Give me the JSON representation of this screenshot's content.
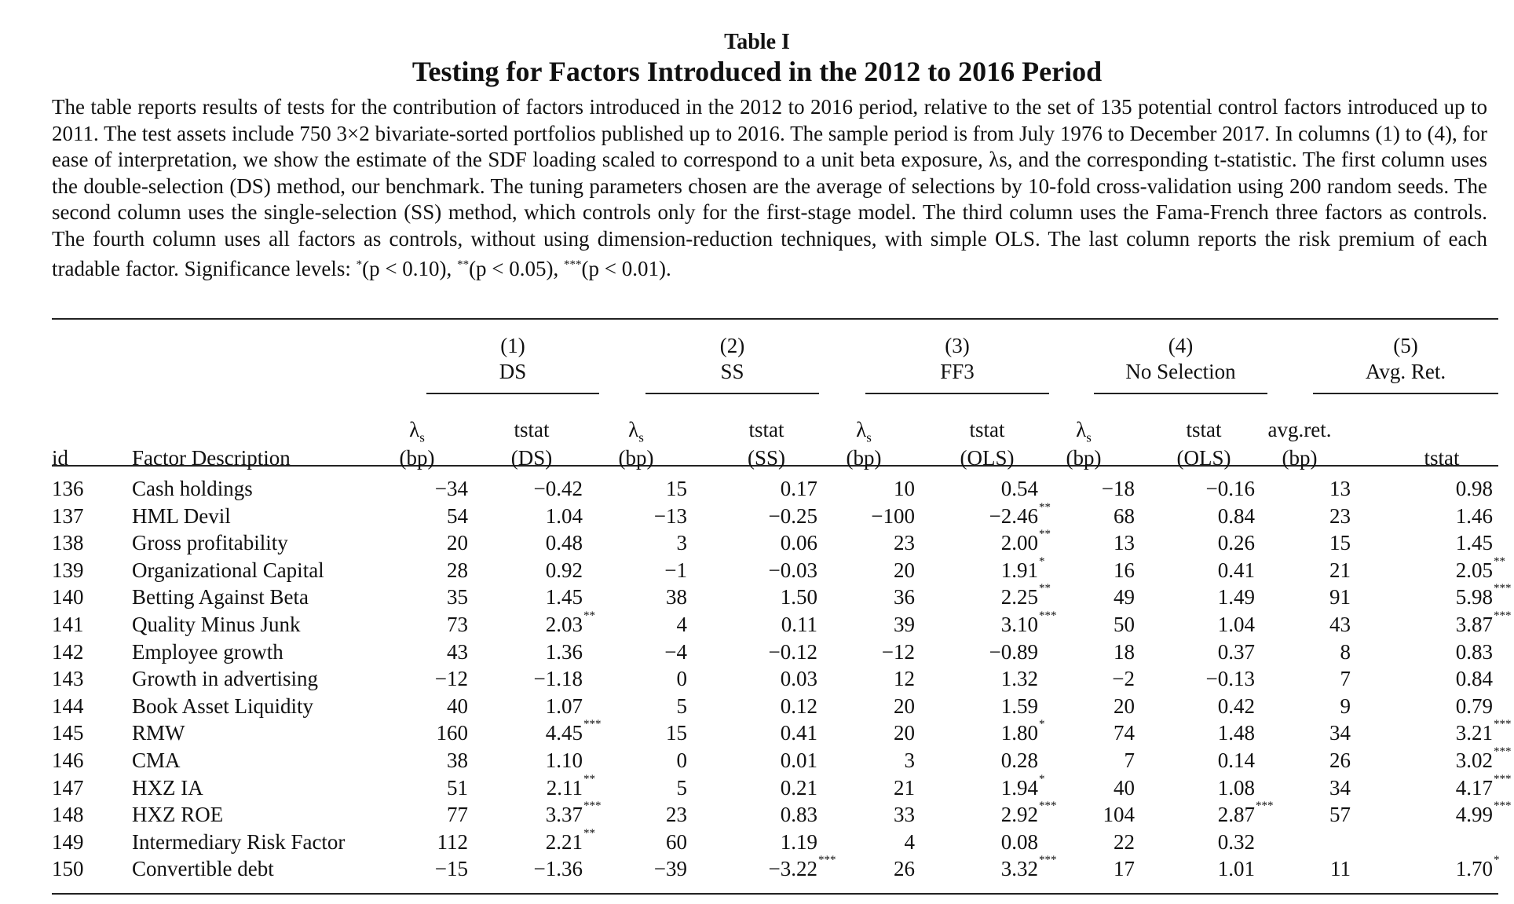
{
  "table_label": "Table I",
  "title": "Testing for Factors Introduced in the 2012 to 2016 Period",
  "caption": {
    "main": "The table reports results of tests for the contribution of factors introduced in the 2012 to 2016 period, relative to the set of 135 potential control factors introduced up to 2011. The test assets include 750 3×2 bivariate-sorted portfolios published up to 2016. The sample period is from July 1976 to December 2017. In columns (1) to (4), for ease of interpretation, we show the estimate of the SDF loading scaled to correspond to a unit beta exposure, λs, and the corresponding t-statistic. The first column uses the double-selection (DS) method, our benchmark. The tuning parameters chosen are the average of selections by 10-fold cross-validation using 200 random seeds. The second column uses the single-selection (SS) method, which controls only for the first-stage model. The third column uses the Fama-French three factors as controls. The fourth column uses all factors as controls, without using dimension-reduction techniques, with simple OLS. The last column reports the risk premium of each tradable factor. Significance levels: ",
    "sig1_mark": "*",
    "sig1_text": "(p < 0.10), ",
    "sig2_mark": "**",
    "sig2_text": "(p < 0.05), ",
    "sig3_mark": "***",
    "sig3_text": "(p < 0.01)."
  },
  "groups": [
    {
      "num": "(1)",
      "name": "DS"
    },
    {
      "num": "(2)",
      "name": "SS"
    },
    {
      "num": "(3)",
      "name": "FF3"
    },
    {
      "num": "(4)",
      "name": "No Selection"
    },
    {
      "num": "(5)",
      "name": "Avg. Ret."
    }
  ],
  "headers": {
    "id": "id",
    "desc": "Factor Description",
    "sub": [
      [
        "λs",
        "(bp)"
      ],
      [
        "tstat",
        "(DS)"
      ],
      [
        "λs",
        "(bp)"
      ],
      [
        "tstat",
        "(SS)"
      ],
      [
        "λs",
        "(bp)"
      ],
      [
        "tstat",
        "(OLS)"
      ],
      [
        "λs",
        "(bp)"
      ],
      [
        "tstat",
        "(OLS)"
      ],
      [
        "avg.ret.",
        "(bp)"
      ],
      [
        "",
        "tstat"
      ]
    ]
  },
  "rows": [
    {
      "id": "136",
      "desc": "Cash holdings",
      "cells": [
        [
          "−34",
          ""
        ],
        [
          "−0.42",
          ""
        ],
        [
          "15",
          ""
        ],
        [
          "0.17",
          ""
        ],
        [
          "10",
          ""
        ],
        [
          "0.54",
          ""
        ],
        [
          "−18",
          ""
        ],
        [
          "−0.16",
          ""
        ],
        [
          "13",
          ""
        ],
        [
          "0.98",
          ""
        ]
      ]
    },
    {
      "id": "137",
      "desc": "HML Devil",
      "cells": [
        [
          "54",
          ""
        ],
        [
          "1.04",
          ""
        ],
        [
          "−13",
          ""
        ],
        [
          "−0.25",
          ""
        ],
        [
          "−100",
          ""
        ],
        [
          "−2.46",
          "**"
        ],
        [
          "68",
          ""
        ],
        [
          "0.84",
          ""
        ],
        [
          "23",
          ""
        ],
        [
          "1.46",
          ""
        ]
      ]
    },
    {
      "id": "138",
      "desc": "Gross profitability",
      "cells": [
        [
          "20",
          ""
        ],
        [
          "0.48",
          ""
        ],
        [
          "3",
          ""
        ],
        [
          "0.06",
          ""
        ],
        [
          "23",
          ""
        ],
        [
          "2.00",
          "**"
        ],
        [
          "13",
          ""
        ],
        [
          "0.26",
          ""
        ],
        [
          "15",
          ""
        ],
        [
          "1.45",
          ""
        ]
      ]
    },
    {
      "id": "139",
      "desc": "Organizational Capital",
      "cells": [
        [
          "28",
          ""
        ],
        [
          "0.92",
          ""
        ],
        [
          "−1",
          ""
        ],
        [
          "−0.03",
          ""
        ],
        [
          "20",
          ""
        ],
        [
          "1.91",
          "*"
        ],
        [
          "16",
          ""
        ],
        [
          "0.41",
          ""
        ],
        [
          "21",
          ""
        ],
        [
          "2.05",
          "**"
        ]
      ]
    },
    {
      "id": "140",
      "desc": "Betting Against Beta",
      "cells": [
        [
          "35",
          ""
        ],
        [
          "1.45",
          ""
        ],
        [
          "38",
          ""
        ],
        [
          "1.50",
          ""
        ],
        [
          "36",
          ""
        ],
        [
          "2.25",
          "**"
        ],
        [
          "49",
          ""
        ],
        [
          "1.49",
          ""
        ],
        [
          "91",
          ""
        ],
        [
          "5.98",
          "***"
        ]
      ]
    },
    {
      "id": "141",
      "desc": "Quality Minus Junk",
      "cells": [
        [
          "73",
          ""
        ],
        [
          "2.03",
          "**"
        ],
        [
          "4",
          ""
        ],
        [
          "0.11",
          ""
        ],
        [
          "39",
          ""
        ],
        [
          "3.10",
          "***"
        ],
        [
          "50",
          ""
        ],
        [
          "1.04",
          ""
        ],
        [
          "43",
          ""
        ],
        [
          "3.87",
          "***"
        ]
      ]
    },
    {
      "id": "142",
      "desc": "Employee growth",
      "cells": [
        [
          "43",
          ""
        ],
        [
          "1.36",
          ""
        ],
        [
          "−4",
          ""
        ],
        [
          "−0.12",
          ""
        ],
        [
          "−12",
          ""
        ],
        [
          "−0.89",
          ""
        ],
        [
          "18",
          ""
        ],
        [
          "0.37",
          ""
        ],
        [
          "8",
          ""
        ],
        [
          "0.83",
          ""
        ]
      ]
    },
    {
      "id": "143",
      "desc": "Growth in advertising",
      "cells": [
        [
          "−12",
          ""
        ],
        [
          "−1.18",
          ""
        ],
        [
          "0",
          ""
        ],
        [
          "0.03",
          ""
        ],
        [
          "12",
          ""
        ],
        [
          "1.32",
          ""
        ],
        [
          "−2",
          ""
        ],
        [
          "−0.13",
          ""
        ],
        [
          "7",
          ""
        ],
        [
          "0.84",
          ""
        ]
      ]
    },
    {
      "id": "144",
      "desc": "Book Asset Liquidity",
      "cells": [
        [
          "40",
          ""
        ],
        [
          "1.07",
          ""
        ],
        [
          "5",
          ""
        ],
        [
          "0.12",
          ""
        ],
        [
          "20",
          ""
        ],
        [
          "1.59",
          ""
        ],
        [
          "20",
          ""
        ],
        [
          "0.42",
          ""
        ],
        [
          "9",
          ""
        ],
        [
          "0.79",
          ""
        ]
      ]
    },
    {
      "id": "145",
      "desc": "RMW",
      "cells": [
        [
          "160",
          ""
        ],
        [
          "4.45",
          "***"
        ],
        [
          "15",
          ""
        ],
        [
          "0.41",
          ""
        ],
        [
          "20",
          ""
        ],
        [
          "1.80",
          "*"
        ],
        [
          "74",
          ""
        ],
        [
          "1.48",
          ""
        ],
        [
          "34",
          ""
        ],
        [
          "3.21",
          "***"
        ]
      ]
    },
    {
      "id": "146",
      "desc": "CMA",
      "cells": [
        [
          "38",
          ""
        ],
        [
          "1.10",
          ""
        ],
        [
          "0",
          ""
        ],
        [
          "0.01",
          ""
        ],
        [
          "3",
          ""
        ],
        [
          "0.28",
          ""
        ],
        [
          "7",
          ""
        ],
        [
          "0.14",
          ""
        ],
        [
          "26",
          ""
        ],
        [
          "3.02",
          "***"
        ]
      ]
    },
    {
      "id": "147",
      "desc": "HXZ IA",
      "cells": [
        [
          "51",
          ""
        ],
        [
          "2.11",
          "**"
        ],
        [
          "5",
          ""
        ],
        [
          "0.21",
          ""
        ],
        [
          "21",
          ""
        ],
        [
          "1.94",
          "*"
        ],
        [
          "40",
          ""
        ],
        [
          "1.08",
          ""
        ],
        [
          "34",
          ""
        ],
        [
          "4.17",
          "***"
        ]
      ]
    },
    {
      "id": "148",
      "desc": "HXZ ROE",
      "cells": [
        [
          "77",
          ""
        ],
        [
          "3.37",
          "***"
        ],
        [
          "23",
          ""
        ],
        [
          "0.83",
          ""
        ],
        [
          "33",
          ""
        ],
        [
          "2.92",
          "***"
        ],
        [
          "104",
          ""
        ],
        [
          "2.87",
          "***"
        ],
        [
          "57",
          ""
        ],
        [
          "4.99",
          "***"
        ]
      ]
    },
    {
      "id": "149",
      "desc": "Intermediary Risk Factor",
      "cells": [
        [
          "112",
          ""
        ],
        [
          "2.21",
          "**"
        ],
        [
          "60",
          ""
        ],
        [
          "1.19",
          ""
        ],
        [
          "4",
          ""
        ],
        [
          "0.08",
          ""
        ],
        [
          "22",
          ""
        ],
        [
          "0.32",
          ""
        ],
        [
          "",
          ""
        ],
        [
          "",
          ""
        ]
      ]
    },
    {
      "id": "150",
      "desc": "Convertible debt",
      "cells": [
        [
          "−15",
          ""
        ],
        [
          "−1.36",
          ""
        ],
        [
          "−39",
          ""
        ],
        [
          "−3.22",
          "***"
        ],
        [
          "26",
          ""
        ],
        [
          "3.32",
          "***"
        ],
        [
          "17",
          ""
        ],
        [
          "1.01",
          ""
        ],
        [
          "11",
          ""
        ],
        [
          "1.70",
          "*"
        ]
      ]
    }
  ]
}
